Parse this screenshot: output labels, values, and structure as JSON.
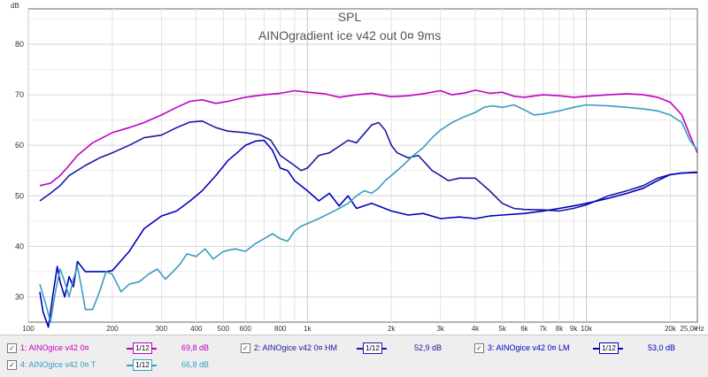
{
  "chart_data": {
    "type": "line",
    "title": "SPL",
    "subtitle": "AINOgradient ice v42 out 0¤ 9ms",
    "ylabel": "dB",
    "xlabel": "Hz",
    "x_scale": "log",
    "xlim": [
      100,
      25000
    ],
    "ylim": [
      25,
      87
    ],
    "grid": true,
    "y_ticks": [
      30,
      40,
      50,
      60,
      70,
      80
    ],
    "x_ticks": [
      {
        "v": 100,
        "label": "100"
      },
      {
        "v": 200,
        "label": "200"
      },
      {
        "v": 300,
        "label": "300"
      },
      {
        "v": 400,
        "label": "400"
      },
      {
        "v": 500,
        "label": "500"
      },
      {
        "v": 600,
        "label": "600"
      },
      {
        "v": 800,
        "label": "800"
      },
      {
        "v": 1000,
        "label": "1k"
      },
      {
        "v": 2000,
        "label": "2k"
      },
      {
        "v": 3000,
        "label": "3k"
      },
      {
        "v": 4000,
        "label": "4k"
      },
      {
        "v": 5000,
        "label": "5k"
      },
      {
        "v": 6000,
        "label": "6k"
      },
      {
        "v": 7000,
        "label": "7k"
      },
      {
        "v": 8000,
        "label": "8k"
      },
      {
        "v": 9000,
        "label": "9k"
      },
      {
        "v": 10000,
        "label": "10k"
      },
      {
        "v": 20000,
        "label": "20k"
      },
      {
        "v": 25000,
        "label": "25,0k"
      }
    ],
    "series": [
      {
        "name": "1: AINOgice v42 0¤",
        "color": "#c000c0",
        "legend_value": "69,8 dB",
        "points": [
          [
            110,
            52
          ],
          [
            120,
            52.5
          ],
          [
            130,
            54
          ],
          [
            140,
            56
          ],
          [
            150,
            58
          ],
          [
            170,
            60.5
          ],
          [
            200,
            62.5
          ],
          [
            230,
            63.5
          ],
          [
            260,
            64.5
          ],
          [
            300,
            66
          ],
          [
            340,
            67.5
          ],
          [
            380,
            68.7
          ],
          [
            420,
            69
          ],
          [
            470,
            68.3
          ],
          [
            520,
            68.7
          ],
          [
            600,
            69.5
          ],
          [
            700,
            70
          ],
          [
            800,
            70.3
          ],
          [
            900,
            70.8
          ],
          [
            1000,
            70.5
          ],
          [
            1150,
            70.2
          ],
          [
            1300,
            69.5
          ],
          [
            1500,
            70
          ],
          [
            1700,
            70.3
          ],
          [
            2000,
            69.6
          ],
          [
            2300,
            69.8
          ],
          [
            2600,
            70.2
          ],
          [
            3000,
            70.8
          ],
          [
            3300,
            70
          ],
          [
            3700,
            70.4
          ],
          [
            4000,
            70.9
          ],
          [
            4500,
            70.3
          ],
          [
            5000,
            70.5
          ],
          [
            5500,
            69.7
          ],
          [
            6000,
            69.5
          ],
          [
            7000,
            70
          ],
          [
            8000,
            69.8
          ],
          [
            9000,
            69.5
          ],
          [
            10000,
            69.7
          ],
          [
            12000,
            70
          ],
          [
            14000,
            70.2
          ],
          [
            16000,
            70
          ],
          [
            18000,
            69.5
          ],
          [
            20000,
            68.5
          ],
          [
            22000,
            66
          ],
          [
            23500,
            62
          ],
          [
            25000,
            58.5
          ]
        ]
      },
      {
        "name": "2: AINOgice v42 0¤ HM",
        "color": "#1a1aa0",
        "legend_value": "52,9 dB",
        "points": [
          [
            110,
            49
          ],
          [
            120,
            50.5
          ],
          [
            130,
            52
          ],
          [
            140,
            54
          ],
          [
            160,
            56
          ],
          [
            180,
            57.5
          ],
          [
            200,
            58.5
          ],
          [
            230,
            60
          ],
          [
            260,
            61.5
          ],
          [
            300,
            62
          ],
          [
            340,
            63.5
          ],
          [
            380,
            64.6
          ],
          [
            420,
            64.8
          ],
          [
            470,
            63.5
          ],
          [
            520,
            62.8
          ],
          [
            600,
            62.5
          ],
          [
            680,
            62
          ],
          [
            740,
            61
          ],
          [
            800,
            58
          ],
          [
            900,
            56
          ],
          [
            950,
            55
          ],
          [
            1000,
            55.5
          ],
          [
            1100,
            58
          ],
          [
            1200,
            58.5
          ],
          [
            1400,
            61
          ],
          [
            1500,
            60.5
          ],
          [
            1700,
            64
          ],
          [
            1800,
            64.5
          ],
          [
            1900,
            63
          ],
          [
            2000,
            60
          ],
          [
            2100,
            58.5
          ],
          [
            2300,
            57.5
          ],
          [
            2500,
            58
          ],
          [
            2800,
            55
          ],
          [
            3000,
            54
          ],
          [
            3200,
            53
          ],
          [
            3500,
            53.5
          ],
          [
            4000,
            53.5
          ],
          [
            4500,
            51
          ],
          [
            5000,
            48.5
          ],
          [
            5500,
            47.5
          ],
          [
            6000,
            47.3
          ],
          [
            7000,
            47.2
          ],
          [
            8000,
            47
          ],
          [
            9000,
            47.5
          ],
          [
            10000,
            48.2
          ],
          [
            12000,
            50
          ],
          [
            14000,
            51
          ],
          [
            16000,
            52
          ],
          [
            18000,
            53.5
          ],
          [
            20000,
            54.2
          ],
          [
            22000,
            54.5
          ],
          [
            25000,
            54.7
          ]
        ]
      },
      {
        "name": "3: AINOgice v42 0¤ LM",
        "color": "#0000c0",
        "legend_value": "53,0 dB",
        "points": [
          [
            110,
            31
          ],
          [
            113,
            27
          ],
          [
            118,
            24
          ],
          [
            123,
            31
          ],
          [
            127,
            36
          ],
          [
            130,
            33
          ],
          [
            135,
            30
          ],
          [
            140,
            34
          ],
          [
            145,
            32
          ],
          [
            150,
            37
          ],
          [
            160,
            35
          ],
          [
            170,
            35
          ],
          [
            190,
            35
          ],
          [
            200,
            35.2
          ],
          [
            230,
            39
          ],
          [
            260,
            43.5
          ],
          [
            300,
            46
          ],
          [
            340,
            47
          ],
          [
            380,
            49
          ],
          [
            420,
            51
          ],
          [
            470,
            54
          ],
          [
            520,
            57
          ],
          [
            560,
            58.5
          ],
          [
            600,
            60
          ],
          [
            650,
            60.8
          ],
          [
            700,
            61
          ],
          [
            750,
            59
          ],
          [
            800,
            55.5
          ],
          [
            850,
            55
          ],
          [
            900,
            53
          ],
          [
            1000,
            51
          ],
          [
            1100,
            49
          ],
          [
            1200,
            50.5
          ],
          [
            1300,
            48
          ],
          [
            1400,
            50
          ],
          [
            1500,
            47.5
          ],
          [
            1700,
            48.5
          ],
          [
            2000,
            47
          ],
          [
            2300,
            46.2
          ],
          [
            2600,
            46.5
          ],
          [
            3000,
            45.5
          ],
          [
            3500,
            45.8
          ],
          [
            4000,
            45.5
          ],
          [
            4500,
            46
          ],
          [
            5000,
            46.2
          ],
          [
            6000,
            46.5
          ],
          [
            7000,
            47
          ],
          [
            8000,
            47.5
          ],
          [
            9000,
            48
          ],
          [
            10000,
            48.5
          ],
          [
            12000,
            49.5
          ],
          [
            14000,
            50.5
          ],
          [
            16000,
            51.5
          ],
          [
            18000,
            53
          ],
          [
            20000,
            54.2
          ],
          [
            22000,
            54.5
          ],
          [
            25000,
            54.6
          ]
        ]
      },
      {
        "name": "4: AINOgice v42 0¤ T",
        "color": "#3a9cc0",
        "legend_value": "66,8 dB",
        "points": [
          [
            110,
            32.5
          ],
          [
            115,
            29
          ],
          [
            120,
            25
          ],
          [
            125,
            31
          ],
          [
            130,
            35.5
          ],
          [
            135,
            33
          ],
          [
            140,
            30
          ],
          [
            145,
            33.5
          ],
          [
            150,
            36
          ],
          [
            155,
            32
          ],
          [
            160,
            27.5
          ],
          [
            170,
            27.5
          ],
          [
            180,
            31
          ],
          [
            190,
            35
          ],
          [
            200,
            34.5
          ],
          [
            215,
            31
          ],
          [
            230,
            32.5
          ],
          [
            250,
            33
          ],
          [
            270,
            34.5
          ],
          [
            290,
            35.5
          ],
          [
            310,
            33.5
          ],
          [
            330,
            35
          ],
          [
            350,
            36.5
          ],
          [
            370,
            38.5
          ],
          [
            400,
            38
          ],
          [
            430,
            39.5
          ],
          [
            460,
            37.5
          ],
          [
            500,
            39
          ],
          [
            550,
            39.5
          ],
          [
            600,
            39
          ],
          [
            650,
            40.5
          ],
          [
            700,
            41.5
          ],
          [
            750,
            42.5
          ],
          [
            800,
            41.5
          ],
          [
            850,
            41
          ],
          [
            900,
            43
          ],
          [
            950,
            44
          ],
          [
            1000,
            44.5
          ],
          [
            1100,
            45.5
          ],
          [
            1200,
            46.5
          ],
          [
            1300,
            47.5
          ],
          [
            1400,
            48.5
          ],
          [
            1500,
            50
          ],
          [
            1600,
            51
          ],
          [
            1700,
            50.5
          ],
          [
            1800,
            51.5
          ],
          [
            1900,
            53
          ],
          [
            2000,
            54
          ],
          [
            2200,
            56
          ],
          [
            2400,
            58
          ],
          [
            2600,
            59.5
          ],
          [
            2800,
            61.5
          ],
          [
            3000,
            63
          ],
          [
            3300,
            64.5
          ],
          [
            3600,
            65.5
          ],
          [
            4000,
            66.5
          ],
          [
            4300,
            67.5
          ],
          [
            4600,
            67.8
          ],
          [
            5000,
            67.5
          ],
          [
            5500,
            68
          ],
          [
            6000,
            67
          ],
          [
            6500,
            66
          ],
          [
            7000,
            66.2
          ],
          [
            8000,
            66.8
          ],
          [
            9000,
            67.5
          ],
          [
            10000,
            68
          ],
          [
            12000,
            67.8
          ],
          [
            14000,
            67.5
          ],
          [
            16000,
            67.2
          ],
          [
            18000,
            66.8
          ],
          [
            20000,
            66
          ],
          [
            22000,
            64.5
          ],
          [
            23500,
            61
          ],
          [
            25000,
            59
          ]
        ]
      }
    ],
    "legend": [
      {
        "check": "✓",
        "label": "1: AINOgice v42 0¤",
        "value": "69,8 dB",
        "color": "#c000c0",
        "box": "1/12"
      },
      {
        "check": "✓",
        "label": "2: AINOgice v42 0¤ HM",
        "value": "52,9 dB",
        "color": "#1a1aa0",
        "box": "1/12"
      },
      {
        "check": "✓",
        "label": "3: AINOgice v42 0¤ LM",
        "value": "53,0 dB",
        "color": "#0000c0",
        "box": "1/12"
      },
      {
        "check": "✓",
        "label": "4: AINOgice v42 0¤ T",
        "value": "66,8 dB",
        "color": "#3a9cc0",
        "box": "1/12"
      }
    ]
  }
}
